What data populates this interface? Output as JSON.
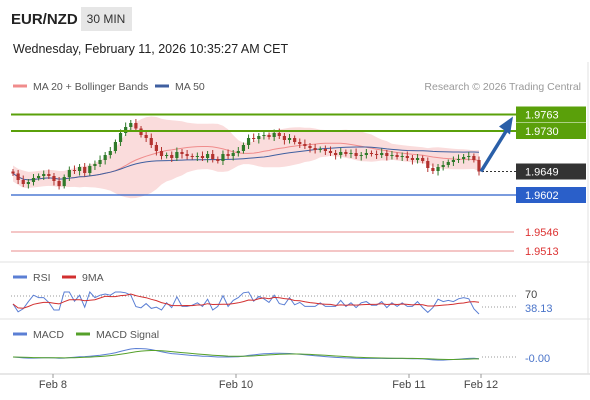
{
  "header": {
    "pair": "EUR/NZD",
    "timeframe": "30 MIN",
    "datetime": "Wednesday, February 11, 2026 10:35:27 AM CET"
  },
  "legend": {
    "ma20_bb": "MA 20 + Bollinger Bands",
    "ma50": "MA 50",
    "credit": "Research © 2026 Trading Central",
    "rsi": "RSI",
    "rsi_ma": "9MA",
    "macd": "MACD",
    "macd_signal": "MACD Signal"
  },
  "colors": {
    "bullish": "#2f7a2a",
    "bearish": "#b3322f",
    "ma20": "#f08c8c",
    "ma50": "#3f5fa0",
    "bb_fill": "#fadcdc",
    "resistance": "#5aa00a",
    "support_blue": "#2a5fc9",
    "support_red": "#e88c8c",
    "arrow": "#2a5fa8",
    "price_tag": "#333333",
    "rsi": "#5b7fd4",
    "rsi_ma": "#d22f2f",
    "macd": "#5b7fd4",
    "macd_signal": "#55a02a"
  },
  "chart_data": [
    {
      "type": "candlestick",
      "x_labels": [
        "Feb 8",
        "Feb 10",
        "Feb 11",
        "Feb 12"
      ],
      "y_range": [
        1.948,
        1.98
      ],
      "current_price": 1.9649,
      "levels": [
        {
          "value": 1.9763,
          "label": "1.9763",
          "kind": "resistance"
        },
        {
          "value": 1.973,
          "label": "1.9730",
          "kind": "resistance"
        },
        {
          "value": 1.9649,
          "label": "1.9649",
          "kind": "current"
        },
        {
          "value": 1.9602,
          "label": "1.9602",
          "kind": "support"
        },
        {
          "value": 1.9546,
          "label": "1.9546",
          "kind": "support-red"
        },
        {
          "value": 1.9513,
          "label": "1.9513",
          "kind": "support-red"
        }
      ],
      "close_series": [
        1.9645,
        1.9632,
        1.9624,
        1.9628,
        1.9636,
        1.964,
        1.9644,
        1.964,
        1.963,
        1.962,
        1.9638,
        1.9652,
        1.965,
        1.9658,
        1.9646,
        1.966,
        1.9664,
        1.9672,
        1.9682,
        1.969,
        1.9708,
        1.9726,
        1.9738,
        1.9746,
        1.9735,
        1.9722,
        1.9716,
        1.9702,
        1.969,
        1.968,
        1.9682,
        1.9676,
        1.9688,
        1.9684,
        1.968,
        1.9678,
        1.968,
        1.9676,
        1.9684,
        1.9674,
        1.967,
        1.9684,
        1.968,
        1.9686,
        1.969,
        1.9702,
        1.9716,
        1.9714,
        1.972,
        1.9722,
        1.9718,
        1.9726,
        1.972,
        1.9712,
        1.9716,
        1.9708,
        1.9704,
        1.97,
        1.9696,
        1.9692,
        1.9694,
        1.969,
        1.9686,
        1.9682,
        1.9688,
        1.9684,
        1.9686,
        1.968,
        1.9682,
        1.9686,
        1.9684,
        1.9682,
        1.9686,
        1.968,
        1.9682,
        1.9678,
        1.968,
        1.9676,
        1.9672,
        1.9676,
        1.967,
        1.9656,
        1.965,
        1.9658,
        1.9662,
        1.9668,
        1.9672,
        1.9674,
        1.9678,
        1.968,
        1.9672,
        1.9649
      ],
      "projection_arrow": {
        "from": 1.9649,
        "to": 1.9763
      }
    },
    {
      "type": "line",
      "name": "RSI",
      "reference_level": 70,
      "last_value": 38.13,
      "value_label": "38.13"
    },
    {
      "type": "line",
      "name": "MACD",
      "last_value": 0.0,
      "value_label": "-0.00"
    }
  ]
}
